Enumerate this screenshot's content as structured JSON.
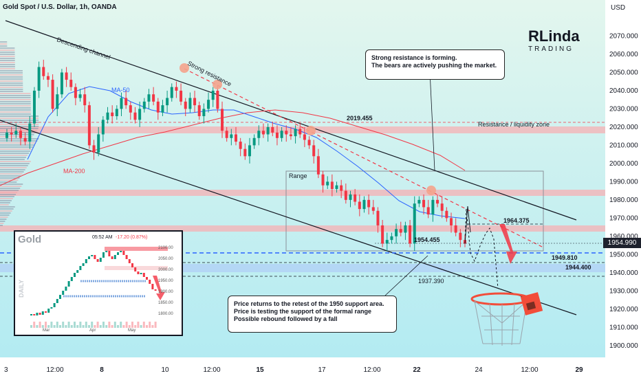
{
  "header": {
    "title": "Gold Spot / U.S. Dollar, 1h, OANDA",
    "currency": "USD"
  },
  "logo": {
    "line1": "RLinda",
    "line2": "TRADING"
  },
  "current_price": "1954.990",
  "callouts": {
    "top": "Strong resistance is forming.\nThe bears are actively pushing the market.",
    "bottom": "Price returns to the retest of the 1950 support area.\nPrice is testing the support of the formal range\nPossible rebound followed by a fall"
  },
  "labels": {
    "descending_channel": "Descending channel",
    "strong_resistance": "Strong resistance",
    "ma50": "MA-50",
    "ma200": "MA-200",
    "range": "Range",
    "resistance_zone": "Resistance / liquidity zone"
  },
  "levels": {
    "l2019": "2019.455",
    "l1964": "1964.375",
    "l1954": "1954.455",
    "l1949": "1949.810",
    "l1944": "1944.400",
    "l1937": "1937.390"
  },
  "colors": {
    "bull": "#089981",
    "bear": "#f23645",
    "channel": "#131722",
    "ma50": "#2962ff",
    "ma200": "#f23645",
    "zone": "#f4b4b8",
    "support": "#b3d4f5",
    "bg_top": "#d4f2e6",
    "bg_bottom": "#b6ecf2"
  },
  "inset": {
    "title": "Gold",
    "time": "05:52 AM",
    "change": "-17.20 (0.87%)",
    "side": "DAILY",
    "y_ticks": [
      "2100.00",
      "2050.00",
      "2000.00",
      "1950.00",
      "1900.00",
      "1850.00",
      "1800.00"
    ],
    "x_ticks": [
      "Mar",
      "Apr",
      "May"
    ]
  },
  "chart_data": {
    "type": "candlestick",
    "title": "Gold Spot / U.S. Dollar, 1h, OANDA",
    "ylim": [
      1895,
      2080
    ],
    "y_ticks": [
      "2070.000",
      "2060.000",
      "2050.000",
      "2040.000",
      "2030.000",
      "2020.000",
      "2010.000",
      "2000.000",
      "1990.000",
      "1980.000",
      "1970.000",
      "1960.000",
      "1950.000",
      "1940.000",
      "1930.000",
      "1920.000",
      "1910.000",
      "1900.000"
    ],
    "x_ticks": [
      "3",
      "12:00",
      "8",
      "10",
      "12:00",
      "15",
      "17",
      "12:00",
      "22",
      "24",
      "12:00",
      "29"
    ],
    "series_close": [
      2017,
      2016,
      2018,
      2014,
      2012,
      2022,
      2040,
      2053,
      2048,
      2046,
      2030,
      2038,
      2050,
      2046,
      2042,
      2036,
      2038,
      2032,
      2010,
      2006,
      2016,
      2024,
      2028,
      2026,
      2030,
      2036,
      2032,
      2028,
      2024,
      2030,
      2034,
      2038,
      2034,
      2028,
      2032,
      2036,
      2042,
      2040,
      2034,
      2030,
      2036,
      2032,
      2026,
      2030,
      2035,
      2040,
      2030,
      2018,
      2014,
      2016,
      2012,
      2008,
      2004,
      2010,
      2014,
      2018,
      2016,
      2020,
      2017,
      2014,
      2018,
      2016,
      2015,
      2019,
      2016,
      2013,
      2010,
      2004,
      1994,
      1988,
      1990,
      1986,
      1988,
      1985,
      1980,
      1983,
      1979,
      1975,
      1980,
      1976,
      1974,
      1966,
      1956,
      1958,
      1960,
      1964,
      1962,
      1966,
      1956,
      1978,
      1980,
      1976,
      1972,
      1980,
      1978,
      1974,
      1970,
      1966,
      1962,
      1958,
      1956
    ]
  }
}
